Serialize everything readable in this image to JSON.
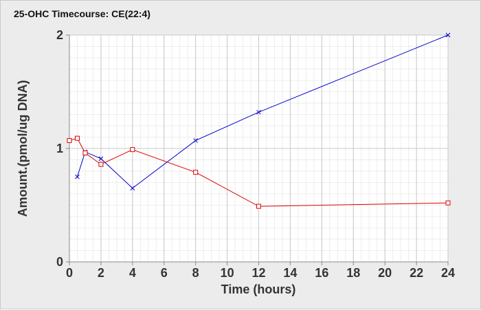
{
  "chart_data": {
    "type": "line",
    "title": "25-OHC Timecourse: CE(22:4)",
    "xlabel": "Time (hours)",
    "ylabel": "Amount.(pmol/ug DNA)",
    "xlim": [
      0,
      24
    ],
    "ylim": [
      0,
      2
    ],
    "x_ticks": [
      0,
      2,
      4,
      6,
      8,
      10,
      12,
      14,
      16,
      18,
      20,
      22,
      24
    ],
    "y_ticks": [
      0,
      1,
      2
    ],
    "grid": true,
    "legend": "none",
    "series": [
      {
        "marker": "x",
        "color": "#0000cc",
        "points": [
          [
            0.5,
            0.75
          ],
          [
            1,
            0.97
          ],
          [
            2,
            0.91
          ],
          [
            4,
            0.65
          ],
          [
            8,
            1.07
          ],
          [
            12,
            1.32
          ],
          [
            24,
            2.0
          ]
        ]
      },
      {
        "marker": "square",
        "color": "#dd0000",
        "points": [
          [
            0,
            1.07
          ],
          [
            0.5,
            1.09
          ],
          [
            1,
            0.96
          ],
          [
            2,
            0.86
          ],
          [
            4,
            0.99
          ],
          [
            8,
            0.79
          ],
          [
            12,
            0.49
          ],
          [
            24,
            0.52
          ]
        ]
      }
    ]
  }
}
